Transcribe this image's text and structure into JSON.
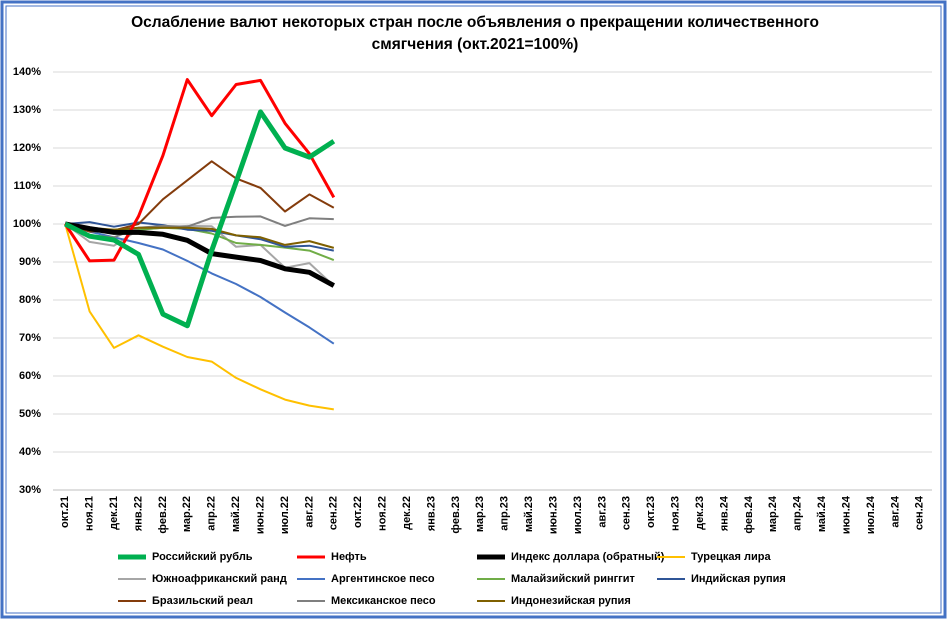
{
  "chart_data": {
    "type": "line",
    "title": "Ослабление валют некоторых стран после объявления о прекращении количественного смягчения  (окт.2021=100%)",
    "categories": [
      "окт.21",
      "ноя.21",
      "дек.21",
      "янв.22",
      "фев.22",
      "мар.22",
      "апр.22",
      "май.22",
      "июн.22",
      "июл.22",
      "авг.22",
      "сен.22",
      "окт.22",
      "ноя.22",
      "дек.22",
      "янв.23",
      "фев.23",
      "мар.23",
      "апр.23",
      "май.23",
      "июн.23",
      "июл.23",
      "авг.23",
      "сен.23",
      "окт.23",
      "ноя.23",
      "дек.23",
      "янв.24",
      "фев.24",
      "мар.24",
      "апр.24",
      "май.24",
      "июн.24",
      "июл.24",
      "авг.24",
      "сен.24"
    ],
    "ylim": [
      30,
      140
    ],
    "yticks": [
      {
        "value": 30,
        "label": "30%"
      },
      {
        "value": 40,
        "label": "40%"
      },
      {
        "value": 50,
        "label": "50%"
      },
      {
        "value": 60,
        "label": "60%"
      },
      {
        "value": 70,
        "label": "70%"
      },
      {
        "value": 80,
        "label": "80%"
      },
      {
        "value": 90,
        "label": "90%"
      },
      {
        "value": 100,
        "label": "100%"
      },
      {
        "value": 110,
        "label": "110%"
      },
      {
        "value": 120,
        "label": "120%"
      },
      {
        "value": 130,
        "label": "130%"
      },
      {
        "value": 140,
        "label": "140%"
      }
    ],
    "grid": true,
    "legend": "bottom",
    "series": [
      {
        "name": "Российский рубль",
        "color": "#00b050",
        "line_width": 5,
        "values": [
          100,
          96.8,
          95.8,
          92,
          76.3,
          73.2,
          93,
          111,
          129.5,
          120,
          117.6,
          121.8,
          null,
          null,
          null,
          null,
          null,
          null,
          null,
          null,
          null,
          null,
          null,
          null,
          null,
          null,
          null,
          null,
          null,
          null,
          null,
          null,
          null,
          null,
          null,
          null
        ]
      },
      {
        "name": "Нефть",
        "color": "#ff0000",
        "line_width": 3,
        "values": [
          100,
          90.3,
          90.5,
          102,
          118,
          138,
          128.5,
          136.7,
          137.8,
          126.5,
          118.5,
          107,
          null,
          null,
          null,
          null,
          null,
          null,
          null,
          null,
          null,
          null,
          null,
          null,
          null,
          null,
          null,
          null,
          null,
          null,
          null,
          null,
          null,
          null,
          null,
          null
        ]
      },
      {
        "name": "Индекс доллара (обратный)",
        "color": "#000000",
        "line_width": 5,
        "values": [
          100,
          98.8,
          97.8,
          97.8,
          97.3,
          95.7,
          92.2,
          91.3,
          90.4,
          88.2,
          87.3,
          83.8,
          null,
          null,
          null,
          null,
          null,
          null,
          null,
          null,
          null,
          null,
          null,
          null,
          null,
          null,
          null,
          null,
          null,
          null,
          null,
          null,
          null,
          null,
          null,
          null
        ]
      },
      {
        "name": "Турецкая лира",
        "color": "#ffc000",
        "line_width": 2,
        "values": [
          100,
          77,
          67.4,
          70.7,
          67.7,
          65,
          63.8,
          59.5,
          56.5,
          53.8,
          52.2,
          51.2,
          null,
          null,
          null,
          null,
          null,
          null,
          null,
          null,
          null,
          null,
          null,
          null,
          null,
          null,
          null,
          null,
          null,
          null,
          null,
          null,
          null,
          null,
          null,
          null
        ]
      },
      {
        "name": "Южноафриканский ранд",
        "color": "#a6a6a6",
        "line_width": 2,
        "values": [
          100,
          95.3,
          94.3,
          98.5,
          99,
          99.5,
          99.4,
          94,
          94.5,
          88.5,
          89.7,
          83.7,
          null,
          null,
          null,
          null,
          null,
          null,
          null,
          null,
          null,
          null,
          null,
          null,
          null,
          null,
          null,
          null,
          null,
          null,
          null,
          null,
          null,
          null,
          null,
          null
        ]
      },
      {
        "name": "Аргентинское песо",
        "color": "#4472c4",
        "line_width": 2,
        "values": [
          100,
          98,
          96.5,
          95,
          93.3,
          90.3,
          87,
          84.2,
          80.8,
          76.7,
          72.8,
          68.5,
          null,
          null,
          null,
          null,
          null,
          null,
          null,
          null,
          null,
          null,
          null,
          null,
          null,
          null,
          null,
          null,
          null,
          null,
          null,
          null,
          null,
          null,
          null,
          null
        ]
      },
      {
        "name": "Малайзийский ринггит",
        "color": "#70ad47",
        "line_width": 2,
        "values": [
          100,
          98.5,
          98.5,
          98.5,
          99,
          98.7,
          97.5,
          95,
          94.5,
          93.8,
          93,
          90.5,
          null,
          null,
          null,
          null,
          null,
          null,
          null,
          null,
          null,
          null,
          null,
          null,
          null,
          null,
          null,
          null,
          null,
          null,
          null,
          null,
          null,
          null,
          null,
          null
        ]
      },
      {
        "name": "Индийская рупия",
        "color": "#2f5597",
        "line_width": 2,
        "values": [
          100,
          100.5,
          99.3,
          100.4,
          99.7,
          98.5,
          98.2,
          97,
          96,
          94,
          94.3,
          93,
          null,
          null,
          null,
          null,
          null,
          null,
          null,
          null,
          null,
          null,
          null,
          null,
          null,
          null,
          null,
          null,
          null,
          null,
          null,
          null,
          null,
          null,
          null,
          null
        ]
      },
      {
        "name": "Бразильский реал",
        "color": "#843c0c",
        "line_width": 2,
        "values": [
          100,
          98,
          98.3,
          100,
          106.5,
          111.5,
          116.5,
          112,
          109.5,
          103.3,
          107.8,
          104.3,
          null,
          null,
          null,
          null,
          null,
          null,
          null,
          null,
          null,
          null,
          null,
          null,
          null,
          null,
          null,
          null,
          null,
          null,
          null,
          null,
          null,
          null,
          null,
          null
        ]
      },
      {
        "name": "Мексиканское песо",
        "color": "#7f7f7f",
        "line_width": 2,
        "values": [
          100,
          97,
          96.5,
          99,
          99.5,
          99.3,
          101.6,
          101.9,
          102,
          99.5,
          101.5,
          101.3,
          null,
          null,
          null,
          null,
          null,
          null,
          null,
          null,
          null,
          null,
          null,
          null,
          null,
          null,
          null,
          null,
          null,
          null,
          null,
          null,
          null,
          null,
          null,
          null
        ]
      },
      {
        "name": "Индонезийская рупия",
        "color": "#7f6000",
        "line_width": 2,
        "values": [
          100,
          99,
          98.5,
          99,
          99,
          99,
          98.7,
          97,
          96.5,
          94.5,
          95.5,
          93.7,
          null,
          null,
          null,
          null,
          null,
          null,
          null,
          null,
          null,
          null,
          null,
          null,
          null,
          null,
          null,
          null,
          null,
          null,
          null,
          null,
          null,
          null,
          null,
          null
        ]
      }
    ]
  }
}
